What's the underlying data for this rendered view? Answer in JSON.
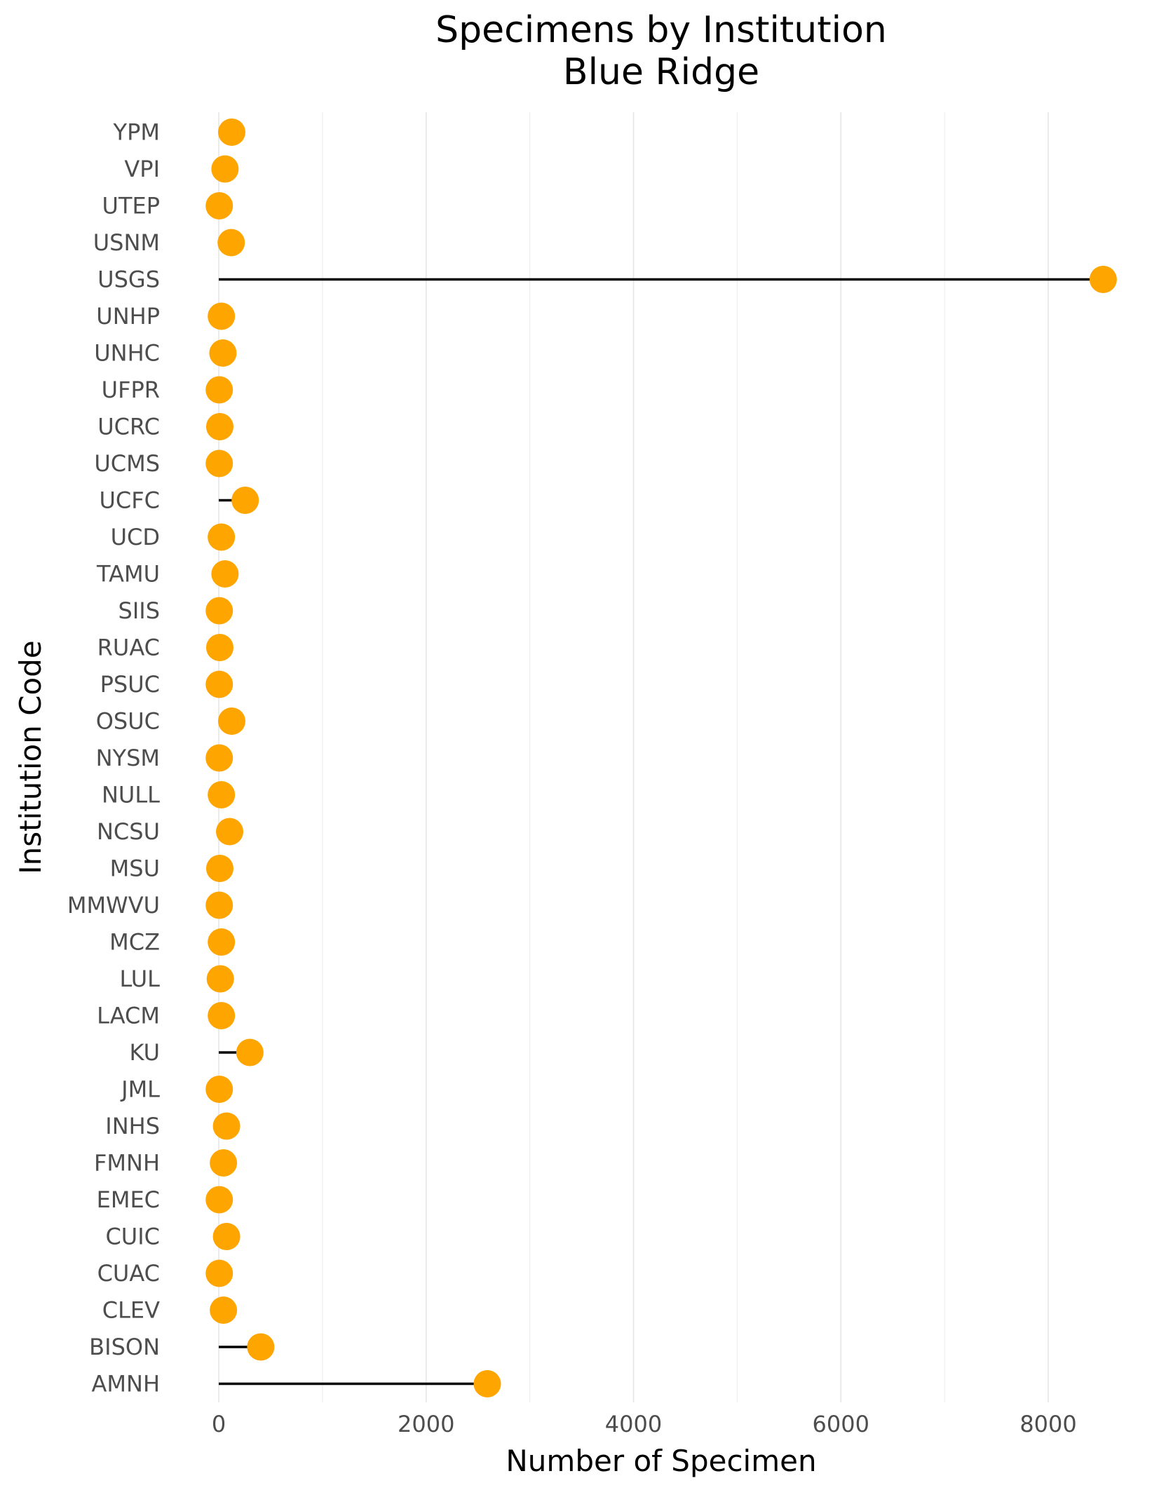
{
  "chart_data": {
    "type": "lollipop",
    "title": "Specimens by Institution",
    "subtitle": "Blue Ridge",
    "xlabel": "Number of Specimen",
    "ylabel": "Institution Code",
    "xlim": [
      -200,
      8650
    ],
    "x_ticks": [
      0,
      2000,
      4000,
      6000,
      8000
    ],
    "x_tick_labels": [
      "0",
      "2000",
      "4000",
      "6000",
      "8000"
    ],
    "x_minor_gridlines": [
      1000,
      3000,
      5000,
      7000
    ],
    "grid": "vertical",
    "point_color": "#FFA500",
    "stem_color": "#000000",
    "categories": [
      "YPM",
      "VPI",
      "UTEP",
      "USNM",
      "USGS",
      "UNHP",
      "UNHC",
      "UFPR",
      "UCRC",
      "UCMS",
      "UCFC",
      "UCD",
      "TAMU",
      "SIIS",
      "RUAC",
      "PSUC",
      "OSUC",
      "NYSM",
      "NULL",
      "NCSU",
      "MSU",
      "MMWVU",
      "MCZ",
      "LUL",
      "LACM",
      "KU",
      "JML",
      "INHS",
      "FMNH",
      "EMEC",
      "CUIC",
      "CUAC",
      "CLEV",
      "BISON",
      "AMNH"
    ],
    "values": [
      125,
      60,
      5,
      120,
      8530,
      25,
      40,
      5,
      10,
      5,
      255,
      25,
      60,
      5,
      10,
      5,
      125,
      5,
      25,
      105,
      10,
      5,
      25,
      15,
      25,
      300,
      5,
      75,
      45,
      5,
      75,
      5,
      45,
      405,
      2590
    ]
  }
}
